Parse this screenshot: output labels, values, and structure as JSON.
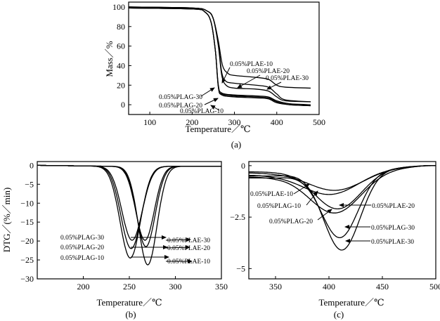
{
  "chart_data": [
    {
      "id": "a",
      "type": "line",
      "caption": "(a)",
      "xlabel": "Temperature／℃",
      "ylabel": "Mass／%",
      "xlim": [
        50,
        500
      ],
      "ylim": [
        -10,
        105
      ],
      "xticks": [
        100,
        200,
        300,
        400,
        500
      ],
      "yticks": [
        0,
        20,
        40,
        60,
        80,
        100
      ],
      "series": [
        {
          "name": "0.05%PLAG-10",
          "x": [
            50,
            200,
            230,
            245,
            255,
            262,
            270,
            300,
            350,
            380,
            400,
            430,
            480
          ],
          "y": [
            99,
            98,
            95,
            84,
            55,
            18,
            10,
            8,
            7,
            6,
            2,
            0,
            -1
          ]
        },
        {
          "name": "0.05%PLAG-20",
          "x": [
            50,
            200,
            230,
            245,
            255,
            262,
            270,
            300,
            350,
            380,
            400,
            430,
            480
          ],
          "y": [
            99,
            98,
            95,
            84,
            55,
            18,
            11,
            9,
            8,
            7,
            3,
            0,
            -1
          ]
        },
        {
          "name": "0.05%PLAG-30",
          "x": [
            50,
            200,
            230,
            245,
            255,
            262,
            270,
            300,
            350,
            380,
            400,
            430,
            480
          ],
          "y": [
            99,
            98,
            95,
            84,
            55,
            20,
            12,
            10,
            9,
            8,
            4,
            1,
            0
          ]
        },
        {
          "name": "0.05%PLAE-10",
          "x": [
            50,
            200,
            235,
            250,
            262,
            270,
            280,
            300,
            350,
            380,
            400,
            420,
            480
          ],
          "y": [
            100,
            99,
            96,
            88,
            60,
            30,
            20,
            17,
            16,
            14,
            8,
            4,
            3
          ]
        },
        {
          "name": "0.05%PLAE-20",
          "x": [
            50,
            200,
            235,
            250,
            262,
            270,
            280,
            300,
            350,
            380,
            400,
            420,
            480
          ],
          "y": [
            100,
            99,
            96,
            88,
            62,
            33,
            24,
            22,
            20,
            18,
            11,
            5,
            3
          ]
        },
        {
          "name": "0.05%PLAE-30",
          "x": [
            50,
            200,
            235,
            250,
            262,
            272,
            285,
            300,
            350,
            380,
            400,
            420,
            480
          ],
          "y": [
            100,
            99,
            96,
            88,
            65,
            40,
            32,
            30,
            28,
            26,
            20,
            18,
            17
          ]
        }
      ],
      "annotations": [
        "0.05%PLAE-10",
        "0.05%PLAE-20",
        "0.05%PLAE-30",
        "0.05%PLAG-30",
        "0.05%PLAG-20",
        "0.05%PLAG-10"
      ]
    },
    {
      "id": "b",
      "type": "line",
      "caption": "(b)",
      "xlabel": "Temperature／℃",
      "ylabel": "DTG／(%／min)",
      "xlim": [
        150,
        350
      ],
      "ylim": [
        -30,
        1
      ],
      "xticks": [
        200,
        250,
        300,
        350
      ],
      "yticks": [
        0,
        -5,
        -10,
        -15,
        -20,
        -25,
        -30
      ],
      "series": [
        {
          "name": "0.05%PLAG-10",
          "peak_x": 251,
          "peak_y": -24.5
        },
        {
          "name": "0.05%PLAG-20",
          "peak_x": 252,
          "peak_y": -22.0
        },
        {
          "name": "0.05%PLAG-30",
          "peak_x": 253,
          "peak_y": -19.8
        },
        {
          "name": "0.05%PLAE-10",
          "peak_x": 270,
          "peak_y": -26.3
        },
        {
          "name": "0.05%PLAE-20",
          "peak_x": 268,
          "peak_y": -21.5
        },
        {
          "name": "0.05%PLAE-30",
          "peak_x": 267,
          "peak_y": -19.8
        }
      ],
      "annotations": [
        "0.05%PLAG-30",
        "0.05%PLAG-20",
        "0.05%PLAG-10",
        "0.05%PLAE-30",
        "0.05%PLAE-20",
        "0.05%PLAE-10"
      ]
    },
    {
      "id": "c",
      "type": "line",
      "caption": "(c)",
      "xlabel": "Temperature／℃",
      "xlim": [
        325,
        500
      ],
      "ylim": [
        -5.5,
        0.2
      ],
      "xticks": [
        350,
        400,
        450,
        500
      ],
      "yticks": [
        0,
        -2.5,
        -5
      ],
      "yticklabels": [
        "0",
        "−2.5",
        "−5"
      ],
      "series": [
        {
          "name": "0.05%PLAE-10",
          "peak_x": 405,
          "peak_y": -1.2
        },
        {
          "name": "0.05%PLAG-10",
          "peak_x": 400,
          "peak_y": -1.4
        },
        {
          "name": "0.05%PLAE-20",
          "peak_x": 408,
          "peak_y": -2.1
        },
        {
          "name": "0.05%PLAG-20",
          "peak_x": 405,
          "peak_y": -2.3
        },
        {
          "name": "0.05%PLAG-30",
          "peak_x": 410,
          "peak_y": -3.5
        },
        {
          "name": "0.05%PLAE-30",
          "peak_x": 412,
          "peak_y": -4.1
        }
      ],
      "annotations": [
        "0.05%PLAE-10",
        "0.05%PLAG-10",
        "0.05%PLAE-20",
        "0.05%PLAG-20",
        "0.05%PLAG-30",
        "0.05%PLAE-30"
      ]
    }
  ],
  "tick_labels": {
    "a_x": [
      "100",
      "200",
      "300",
      "400",
      "500"
    ],
    "a_y": [
      "0",
      "20",
      "40",
      "60",
      "80",
      "100"
    ],
    "b_x": [
      "200",
      "250",
      "300",
      "350"
    ],
    "b_y": [
      "0",
      "−5",
      "−10",
      "−15",
      "−20",
      "−25",
      "−30"
    ],
    "c_x": [
      "350",
      "400",
      "450",
      "500"
    ],
    "c_y": [
      "0",
      "−2.5",
      "−5"
    ]
  }
}
